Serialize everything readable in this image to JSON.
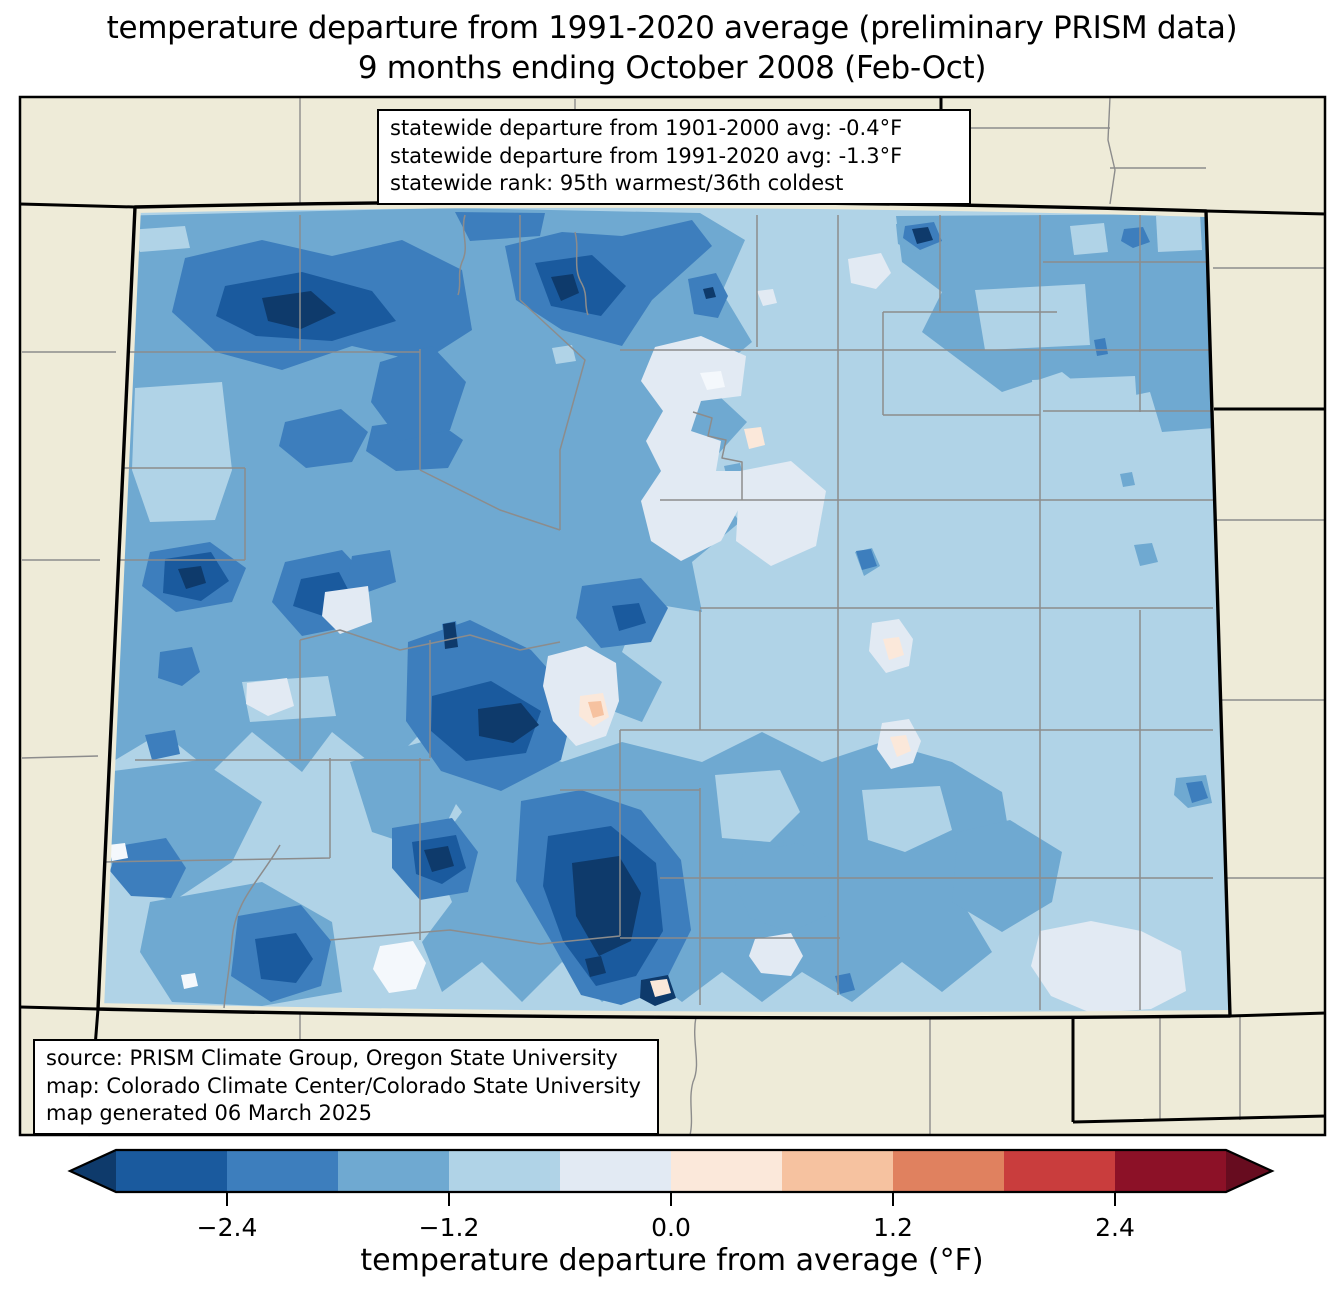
{
  "title": {
    "line1": "temperature departure from 1991-2020 average (preliminary PRISM data)",
    "line2": "9 months ending October 2008 (Feb-Oct)"
  },
  "stats_box": {
    "lines": [
      "statewide departure from 1901-2000 avg: -0.4°F",
      "statewide departure from 1991-2020 avg: -1.3°F",
      "statewide rank: 95th warmest/36th coldest"
    ]
  },
  "source_box": {
    "lines": [
      "source: PRISM Climate Group, Oregon State University",
      "map: Colorado Climate Center/Colorado State University",
      "map generated 06 March 2025"
    ]
  },
  "colorbar": {
    "label": "temperature departure from average (°F)",
    "range": [
      -3,
      3
    ],
    "tick_values": [
      -2.4,
      -1.2,
      0.0,
      1.2,
      2.4
    ],
    "tick_labels": [
      "−2.4",
      "−1.2",
      "0.0",
      "1.2",
      "2.4"
    ],
    "segments": [
      "#1a5a9e",
      "#3d7ebd",
      "#6fa9d1",
      "#b0d3e7",
      "#e2eaf3",
      "#fbe8da",
      "#f6c2a0",
      "#e0815f",
      "#c93d3d",
      "#8c1127"
    ],
    "arrow_left": "#0e3a6b",
    "arrow_right": "#670c1f"
  },
  "map": {
    "region": "Colorado",
    "legend_classes": [
      {
        "range": "< -3.0",
        "color": "#0e3a6b"
      },
      {
        "range": "-3.0 to -2.4",
        "color": "#1a5a9e"
      },
      {
        "range": "-2.4 to -1.8",
        "color": "#3d7ebd"
      },
      {
        "range": "-1.8 to -1.2",
        "color": "#6fa9d1"
      },
      {
        "range": "-1.2 to -0.6",
        "color": "#b0d3e7"
      },
      {
        "range": "-0.6 to 0.0",
        "color": "#e2eaf3"
      },
      {
        "range": "0.0 to 0.6",
        "color": "#fbe8da"
      },
      {
        "range": "0.6 to 1.2",
        "color": "#f6c2a0"
      }
    ],
    "colors": {
      "beige": "#eeebd8",
      "base": "#b0d3e7",
      "c1": "#6fa9d1",
      "c2": "#3d7ebd",
      "c3": "#1a5a9e",
      "c4": "#0e3a6b",
      "l1": "#e2eaf3",
      "l0": "#f4f8fc",
      "p1": "#fbe8da",
      "p2": "#f6c2a0",
      "county": "#8c8c8c",
      "stateline": "#000000"
    }
  }
}
